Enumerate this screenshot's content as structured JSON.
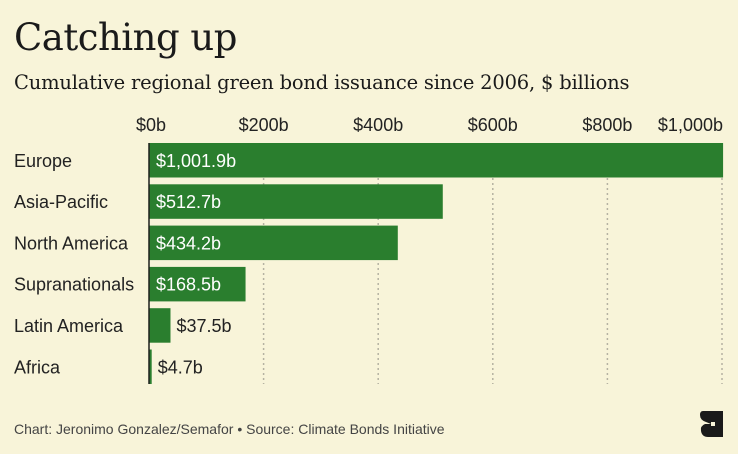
{
  "header": {
    "title": "Catching up",
    "subtitle": "Cumulative regional green bond issuance since 2006, $ billions"
  },
  "footer": {
    "credit": "Chart: Jeronimo Gonzalez/Semafor • Source: Climate Bonds Initiative",
    "logo_icon": "semafor-logo-icon"
  },
  "colors": {
    "background": "#f8f4d9",
    "bar": "#2a7e2e",
    "grid": "#b5b2a2",
    "axis": "#1e1e1e"
  },
  "chart_data": {
    "type": "bar",
    "orientation": "horizontal",
    "title": "Catching up",
    "subtitle": "Cumulative regional green bond issuance since 2006, $ billions",
    "xlabel": "",
    "ylabel": "",
    "xlim": [
      0,
      1000
    ],
    "x_ticks": [
      0,
      200,
      400,
      600,
      800,
      1000
    ],
    "x_tick_labels": [
      "$0b",
      "$200b",
      "$400b",
      "$600b",
      "$800b",
      "$1,000b"
    ],
    "grid": true,
    "legend": "none",
    "categories": [
      "Europe",
      "Asia-Pacific",
      "North America",
      "Supranationals",
      "Latin America",
      "Africa"
    ],
    "values": [
      1001.9,
      512.7,
      434.2,
      168.5,
      37.5,
      4.7
    ],
    "data_labels": [
      "$1,001.9b",
      "$512.7b",
      "$434.2b",
      "$168.5b",
      "$37.5b",
      "$4.7b"
    ]
  }
}
